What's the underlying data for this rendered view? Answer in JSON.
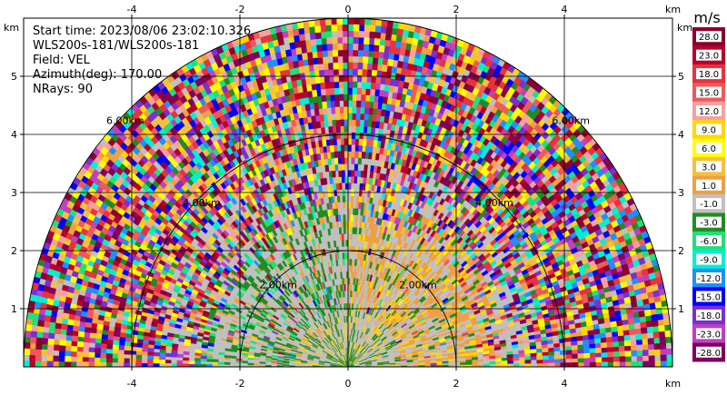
{
  "chart_data": {
    "type": "heatmap",
    "field": "VEL",
    "info_lines": [
      "Start time: 2023/08/06 23:02:10.326",
      "WLS200s-181/WLS200s-181",
      "Field: VEL",
      "Azimuth(deg): 170.00",
      "NRays: 90"
    ],
    "x_unit": "km",
    "y_unit": "km",
    "x_ticks": [
      -4,
      -2,
      0,
      2,
      4
    ],
    "y_ticks": [
      1,
      2,
      3,
      4,
      5
    ],
    "xlim": [
      -6.0,
      6.0
    ],
    "ylim": [
      0,
      6.0
    ],
    "grid": true,
    "max_range_km": 6.0,
    "range_rings_km": [
      2,
      4,
      6
    ],
    "range_ring_labels": [
      "2.00km",
      "4.00km",
      "6.00km"
    ],
    "colorbar": {
      "unit": "m/s",
      "labels": [
        "28.0",
        "23.0",
        "18.0",
        "15.0",
        "12.0",
        "9.0",
        "6.0",
        "3.0",
        "1.0",
        "-1.0",
        "-3.0",
        "-6.0",
        "-9.0",
        "-12.0",
        "-15.0",
        "-18.0",
        "-23.0",
        "-28.0"
      ],
      "colors": [
        "#8b0030",
        "#b8002a",
        "#e8323e",
        "#f05a5a",
        "#f8a0a0",
        "#ffd700",
        "#ffff00",
        "#f5c040",
        "#f0a040",
        "#c0c0c0",
        "#228b22",
        "#1fe07a",
        "#00f0d0",
        "#1e90ff",
        "#0000ff",
        "#7b2fd0",
        "#c040c0",
        "#800060"
      ]
    }
  }
}
